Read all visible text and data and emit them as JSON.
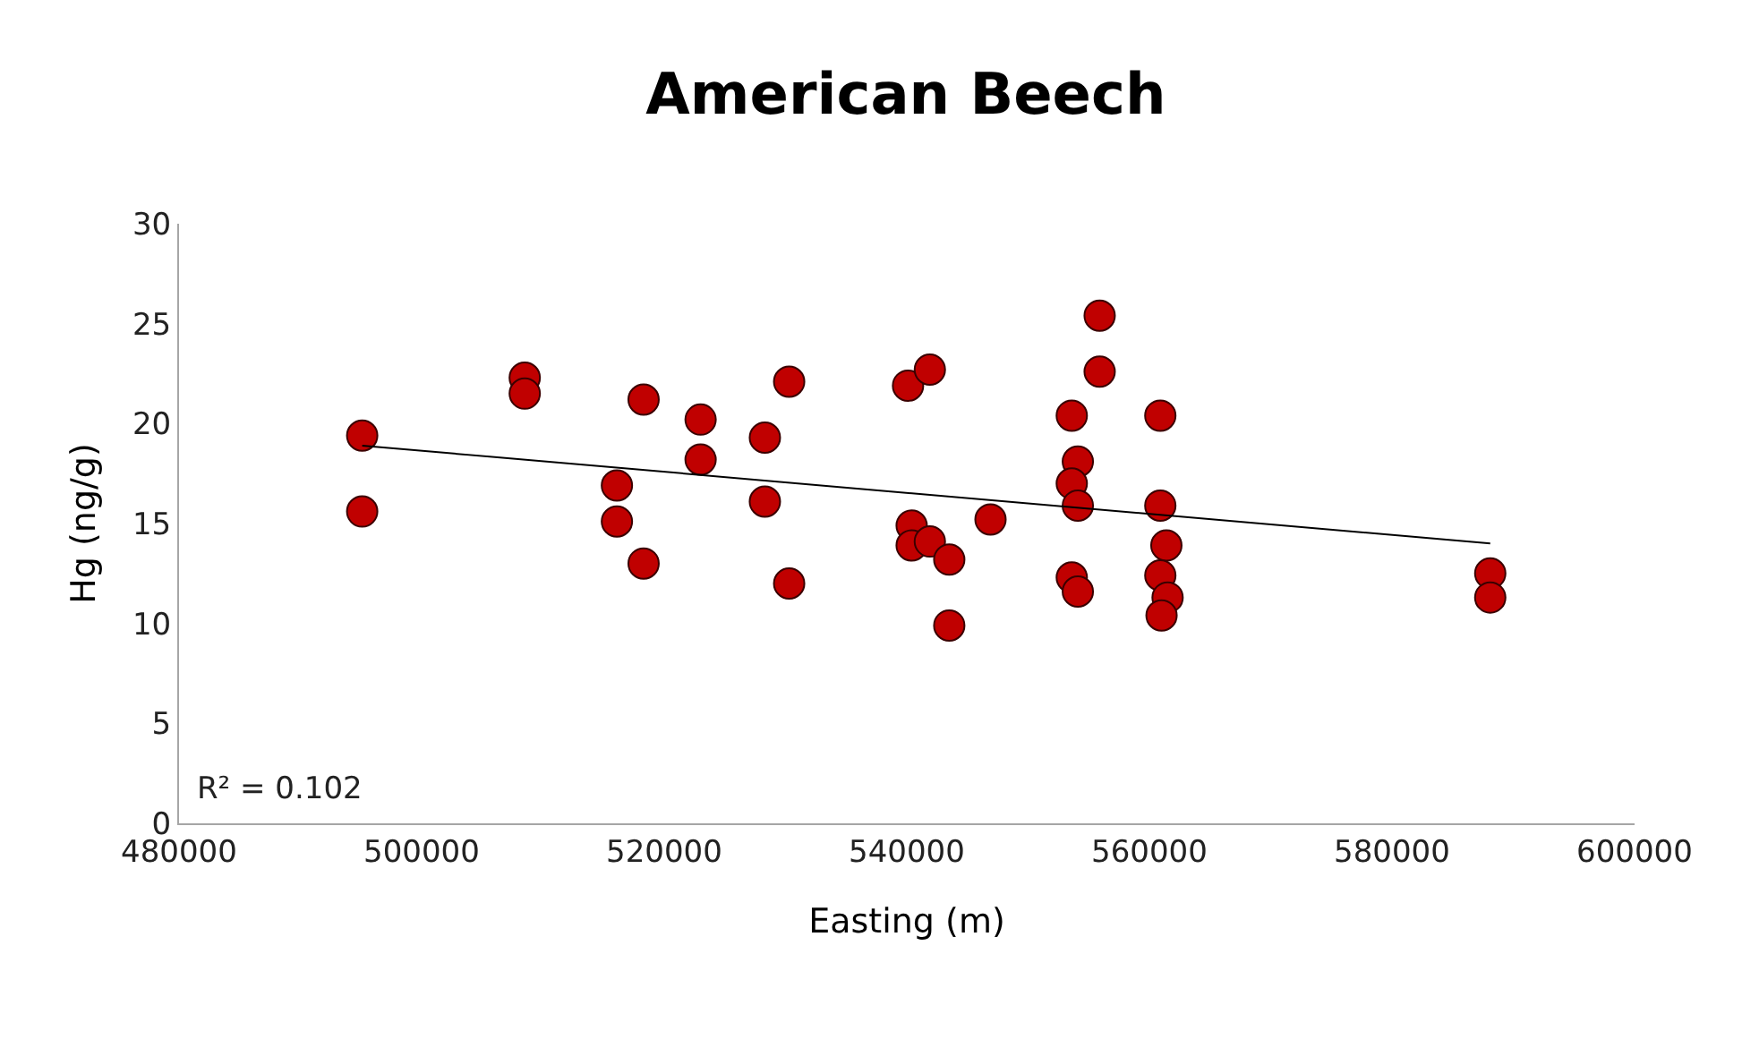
{
  "chart_data": {
    "type": "scatter",
    "title": "American Beech",
    "xlabel": "Easting (m)",
    "ylabel": "Hg (ng/g)",
    "xlim": [
      480000,
      600000
    ],
    "xticks": [
      480000,
      500000,
      520000,
      540000,
      560000,
      580000,
      600000
    ],
    "ylim": [
      0,
      30
    ],
    "yticks": [
      0,
      5,
      10,
      15,
      20,
      25,
      30
    ],
    "marker": "circle",
    "annotations": [
      "R² = 0.102"
    ],
    "series": [
      {
        "color": "#c00000",
        "x": [
          495100,
          495100,
          508500,
          508500,
          518300,
          518300,
          516100,
          516100,
          523000,
          523000,
          528300,
          528300,
          530300,
          530300,
          540100,
          541900,
          540400,
          540400,
          541900,
          543500,
          543500,
          546900,
          553600,
          554100,
          553600,
          554100,
          553600,
          554100,
          555900,
          555900,
          560900,
          560900,
          561400,
          560900,
          561500,
          561000,
          588100,
          588100
        ],
        "values": [
          19.4,
          15.6,
          22.3,
          21.5,
          21.2,
          13.0,
          16.9,
          15.1,
          20.2,
          18.2,
          19.3,
          16.1,
          22.1,
          12.0,
          21.9,
          22.7,
          14.9,
          13.9,
          14.1,
          13.2,
          9.9,
          15.2,
          20.4,
          18.1,
          17.0,
          15.9,
          12.3,
          11.6,
          25.4,
          22.6,
          20.4,
          15.9,
          13.9,
          12.4,
          11.3,
          10.4,
          12.5,
          11.3
        ]
      },
      {
        "type": "line",
        "color": "#000000",
        "x": [
          495100,
          588100
        ],
        "values": [
          18.9,
          14.0
        ],
        "marker": "none",
        "line_style": "solid"
      }
    ]
  }
}
